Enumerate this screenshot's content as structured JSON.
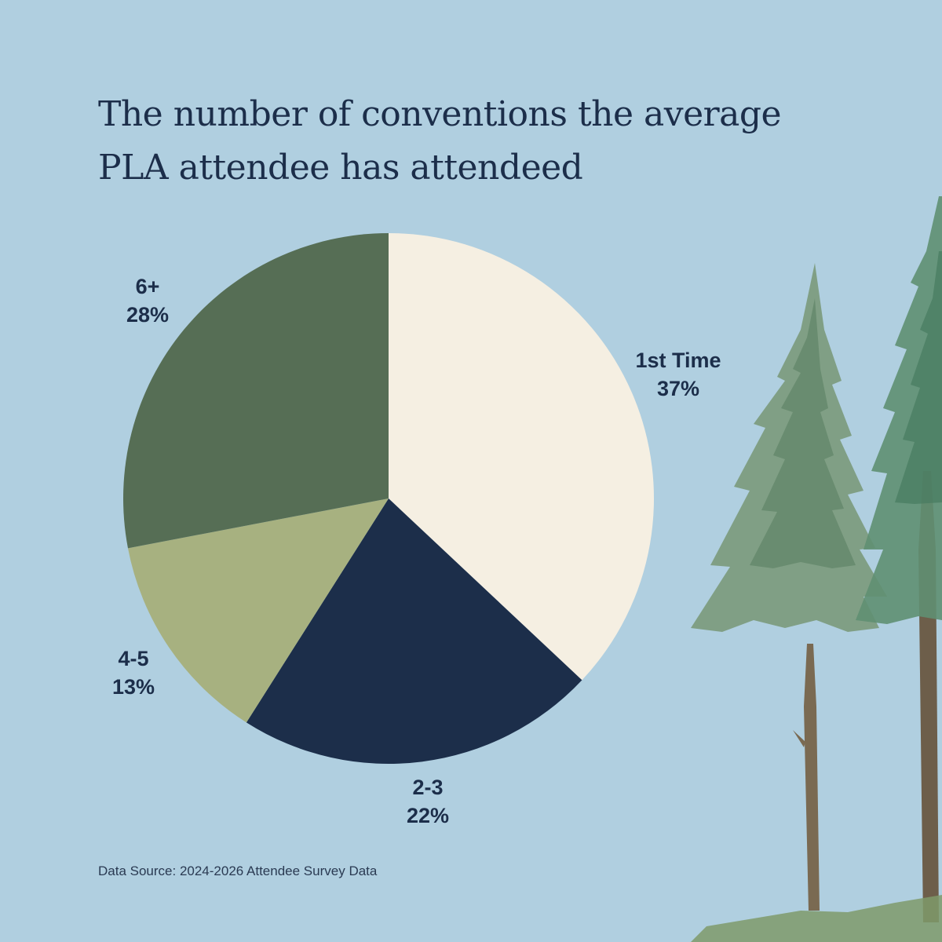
{
  "title_lines": [
    "The number of conventions the average",
    "PLA attendee has attendeed"
  ],
  "source": "Data Source: 2024-2026 Attendee Survey Data",
  "chart_data": {
    "type": "pie",
    "title": "The number of conventions the average PLA attendee has attendeed",
    "slices": [
      {
        "label": "1st Time",
        "value": 37,
        "display": "37%",
        "color": "#f5efe2"
      },
      {
        "label": "2-3",
        "value": 22,
        "display": "22%",
        "color": "#1c2e4a"
      },
      {
        "label": "4-5",
        "value": 13,
        "display": "13%",
        "color": "#a7b180"
      },
      {
        "label": "6+",
        "value": 28,
        "display": "28%",
        "color": "#566e55"
      }
    ],
    "start_direction": "top",
    "order": "clockwise"
  },
  "colors": {
    "background": "#b0cfe0",
    "text": "#1c2e4a"
  }
}
